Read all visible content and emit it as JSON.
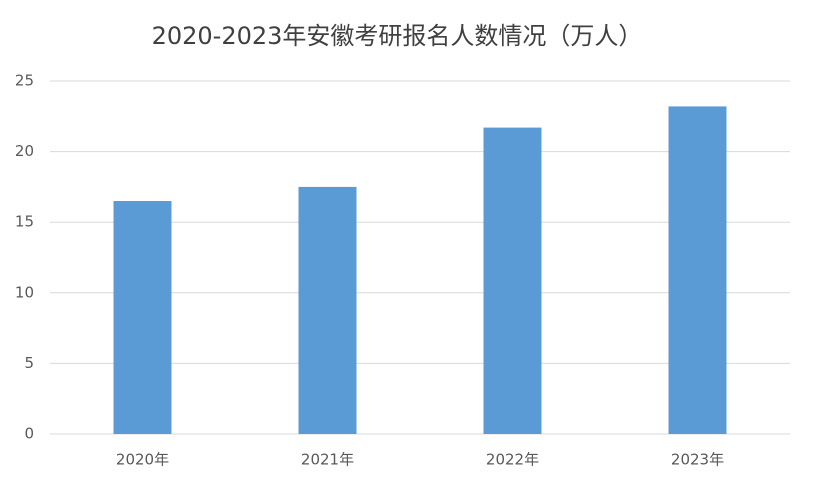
{
  "chart_data": {
    "type": "bar",
    "title": "2020-2023年安徽考研报名人数情况（万人）",
    "categories": [
      "2020年",
      "2021年",
      "2022年",
      "2023年"
    ],
    "values": [
      16.5,
      17.5,
      21.7,
      23.2
    ],
    "color": "#5b9bd5",
    "ylim": [
      0,
      25
    ],
    "yticks": [
      0,
      5,
      10,
      15,
      20,
      25
    ],
    "grid": true
  }
}
